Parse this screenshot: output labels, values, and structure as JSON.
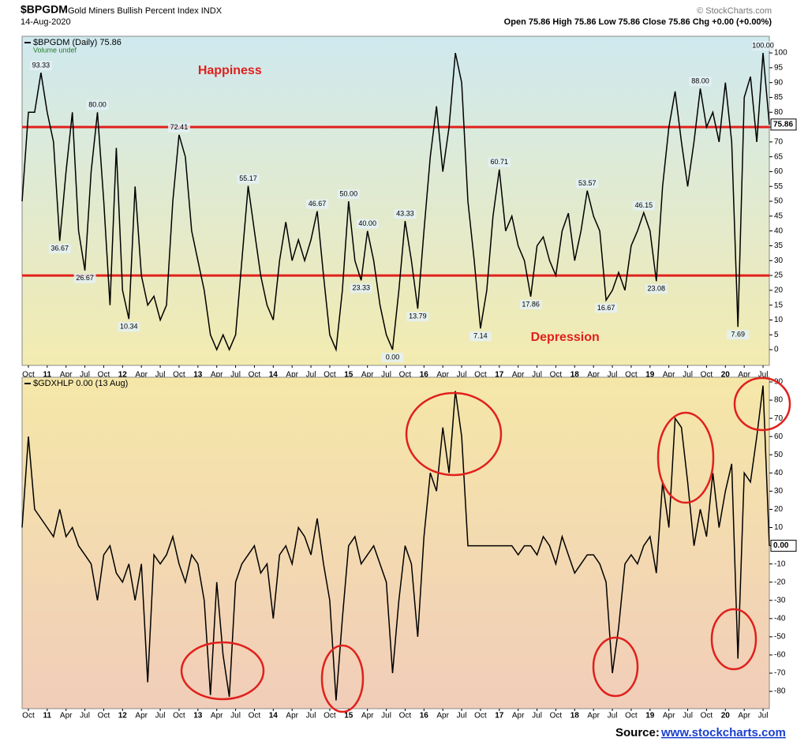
{
  "header": {
    "symbol": "$BPGDM",
    "name": "Gold Miners Bullish Percent Index INDX",
    "date": "14-Aug-2020",
    "credit": "© StockCharts.com",
    "quote": "Open 75.86  High 75.86  Low 75.86  Close 75.86  Chg +0.00 (+0.00%)"
  },
  "chart_data": [
    {
      "type": "line",
      "legend": [
        "$BPGDM (Daily) 75.86",
        "Volume undef"
      ],
      "last_label": "75.86",
      "x": [
        "2010-09",
        "2010-10",
        "2010-11",
        "2010-12",
        "2011-01",
        "2011-02",
        "2011-03",
        "2011-04",
        "2011-05",
        "2011-06",
        "2011-07",
        "2011-08",
        "2011-09",
        "2011-10",
        "2011-11",
        "2011-12",
        "2012-01",
        "2012-02",
        "2012-03",
        "2012-04",
        "2012-05",
        "2012-06",
        "2012-07",
        "2012-08",
        "2012-09",
        "2012-10",
        "2012-11",
        "2012-12",
        "2013-01",
        "2013-02",
        "2013-03",
        "2013-04",
        "2013-05",
        "2013-06",
        "2013-07",
        "2013-08",
        "2013-09",
        "2013-10",
        "2013-11",
        "2013-12",
        "2014-01",
        "2014-02",
        "2014-03",
        "2014-04",
        "2014-05",
        "2014-06",
        "2014-07",
        "2014-08",
        "2014-09",
        "2014-10",
        "2014-11",
        "2014-12",
        "2015-01",
        "2015-02",
        "2015-03",
        "2015-04",
        "2015-05",
        "2015-06",
        "2015-07",
        "2015-08",
        "2015-09",
        "2015-10",
        "2015-11",
        "2015-12",
        "2016-01",
        "2016-02",
        "2016-03",
        "2016-04",
        "2016-05",
        "2016-06",
        "2016-07",
        "2016-08",
        "2016-09",
        "2016-10",
        "2016-11",
        "2016-12",
        "2017-01",
        "2017-02",
        "2017-03",
        "2017-04",
        "2017-05",
        "2017-06",
        "2017-07",
        "2017-08",
        "2017-09",
        "2017-10",
        "2017-11",
        "2017-12",
        "2018-01",
        "2018-02",
        "2018-03",
        "2018-04",
        "2018-05",
        "2018-06",
        "2018-07",
        "2018-08",
        "2018-09",
        "2018-10",
        "2018-11",
        "2018-12",
        "2019-01",
        "2019-02",
        "2019-03",
        "2019-04",
        "2019-05",
        "2019-06",
        "2019-07",
        "2019-08",
        "2019-09",
        "2019-10",
        "2019-11",
        "2019-12",
        "2020-01",
        "2020-02",
        "2020-03",
        "2020-04",
        "2020-05",
        "2020-06",
        "2020-07",
        "2020-08"
      ],
      "series": [
        {
          "name": "$BPGDM",
          "color": "#000000",
          "values": [
            50,
            80,
            80,
            93.33,
            80,
            70,
            36.67,
            60,
            80,
            40,
            26.67,
            60,
            80,
            50,
            15,
            68,
            20,
            10.34,
            55,
            25,
            15,
            18,
            10,
            15,
            50,
            72.41,
            65,
            40,
            30,
            20,
            5,
            0,
            5,
            0,
            5,
            30,
            55.17,
            40,
            25,
            15,
            10,
            30,
            43,
            30,
            37,
            30,
            37,
            46.67,
            25,
            5,
            0,
            20,
            50,
            30,
            23.33,
            40,
            30,
            15,
            5,
            0,
            20,
            43.33,
            30,
            13.79,
            40,
            65,
            82,
            60,
            75,
            100,
            90,
            50,
            30,
            7.14,
            20,
            45,
            60.71,
            40,
            45,
            35,
            30,
            17.86,
            35,
            38,
            30,
            25,
            40,
            46,
            30,
            40,
            53.57,
            45,
            40,
            16.67,
            20,
            26,
            20,
            35,
            40,
            46.15,
            40,
            23.08,
            55,
            75,
            87,
            70,
            55,
            70,
            88,
            75,
            80,
            70,
            90,
            70,
            7.69,
            85,
            92,
            70,
            100,
            75.86
          ],
          "value_labels": [
            null,
            null,
            null,
            "93.33",
            null,
            null,
            "36.67",
            null,
            null,
            null,
            "26.67",
            null,
            "80.00",
            null,
            null,
            null,
            null,
            "10.34",
            null,
            null,
            null,
            null,
            null,
            null,
            null,
            "72.41",
            null,
            null,
            null,
            null,
            null,
            null,
            null,
            null,
            null,
            null,
            "55.17",
            null,
            null,
            null,
            null,
            null,
            null,
            null,
            null,
            null,
            null,
            "46.67",
            null,
            null,
            null,
            null,
            "50.00",
            null,
            "23.33",
            "40.00",
            null,
            null,
            null,
            "0.00",
            null,
            "43.33",
            null,
            "13.79",
            null,
            null,
            null,
            null,
            null,
            null,
            null,
            null,
            null,
            "7.14",
            null,
            null,
            "60.71",
            null,
            null,
            null,
            null,
            "17.86",
            null,
            null,
            null,
            null,
            null,
            null,
            null,
            null,
            "53.57",
            null,
            null,
            "16.67",
            null,
            null,
            null,
            null,
            null,
            "46.15",
            null,
            "23.08",
            null,
            null,
            null,
            null,
            null,
            null,
            "88.00",
            null,
            null,
            null,
            null,
            null,
            "7.69",
            null,
            null,
            null,
            "100.00",
            null
          ]
        }
      ],
      "xlim": [
        "2010-09",
        "2020-08"
      ],
      "ylim": [
        -5.3,
        105.6
      ],
      "yticks": [
        0,
        5,
        10,
        15,
        20,
        25,
        30,
        35,
        40,
        45,
        50,
        55,
        60,
        65,
        70,
        75,
        80,
        85,
        90,
        95,
        100
      ],
      "reference_lines": [
        {
          "value": 75,
          "color": "#e0201c"
        },
        {
          "value": 25,
          "color": "#e0201c"
        }
      ],
      "zones": [
        {
          "text": "Happiness",
          "x": "2013-01",
          "y": 94
        },
        {
          "text": "Depression",
          "x": "2017-06",
          "y": 4
        }
      ],
      "background": [
        "#cfe9ef",
        "#f3ebb0"
      ]
    },
    {
      "type": "line",
      "legend": [
        "$GDXHLP 0.00 (13 Aug)"
      ],
      "last_label": "0.00",
      "x": [
        "2010-09",
        "2010-10",
        "2010-11",
        "2010-12",
        "2011-01",
        "2011-02",
        "2011-03",
        "2011-04",
        "2011-05",
        "2011-06",
        "2011-07",
        "2011-08",
        "2011-09",
        "2011-10",
        "2011-11",
        "2011-12",
        "2012-01",
        "2012-02",
        "2012-03",
        "2012-04",
        "2012-05",
        "2012-06",
        "2012-07",
        "2012-08",
        "2012-09",
        "2012-10",
        "2012-11",
        "2012-12",
        "2013-01",
        "2013-02",
        "2013-03",
        "2013-04",
        "2013-05",
        "2013-06",
        "2013-07",
        "2013-08",
        "2013-09",
        "2013-10",
        "2013-11",
        "2013-12",
        "2014-01",
        "2014-02",
        "2014-03",
        "2014-04",
        "2014-05",
        "2014-06",
        "2014-07",
        "2014-08",
        "2014-09",
        "2014-10",
        "2014-11",
        "2014-12",
        "2015-01",
        "2015-02",
        "2015-03",
        "2015-04",
        "2015-05",
        "2015-06",
        "2015-07",
        "2015-08",
        "2015-09",
        "2015-10",
        "2015-11",
        "2015-12",
        "2016-01",
        "2016-02",
        "2016-03",
        "2016-04",
        "2016-05",
        "2016-06",
        "2016-07",
        "2016-08",
        "2016-09",
        "2016-10",
        "2016-11",
        "2016-12",
        "2017-01",
        "2017-02",
        "2017-03",
        "2017-04",
        "2017-05",
        "2017-06",
        "2017-07",
        "2017-08",
        "2017-09",
        "2017-10",
        "2017-11",
        "2017-12",
        "2018-01",
        "2018-02",
        "2018-03",
        "2018-04",
        "2018-05",
        "2018-06",
        "2018-07",
        "2018-08",
        "2018-09",
        "2018-10",
        "2018-11",
        "2018-12",
        "2019-01",
        "2019-02",
        "2019-03",
        "2019-04",
        "2019-05",
        "2019-06",
        "2019-07",
        "2019-08",
        "2019-09",
        "2019-10",
        "2019-11",
        "2019-12",
        "2020-01",
        "2020-02",
        "2020-03",
        "2020-04",
        "2020-05",
        "2020-06",
        "2020-07",
        "2020-08"
      ],
      "series": [
        {
          "name": "$GDXHLP",
          "color": "#000000",
          "values": [
            10,
            60,
            20,
            15,
            10,
            5,
            20,
            5,
            10,
            0,
            -5,
            -10,
            -30,
            -5,
            0,
            -15,
            -20,
            -10,
            -30,
            -10,
            -75,
            -5,
            -10,
            -5,
            5,
            -10,
            -20,
            -5,
            -10,
            -30,
            -82,
            -20,
            -60,
            -83,
            -20,
            -10,
            -5,
            0,
            -15,
            -10,
            -40,
            -5,
            0,
            -10,
            10,
            5,
            -5,
            15,
            -10,
            -30,
            -85,
            -40,
            0,
            5,
            -10,
            -5,
            0,
            -10,
            -20,
            -70,
            -30,
            0,
            -10,
            -50,
            5,
            40,
            30,
            65,
            40,
            85,
            60,
            0,
            0,
            0,
            0,
            0,
            0,
            0,
            0,
            -5,
            0,
            0,
            -5,
            5,
            0,
            -10,
            5,
            -5,
            -15,
            -10,
            -5,
            -5,
            -10,
            -20,
            -70,
            -45,
            -10,
            -5,
            -10,
            0,
            5,
            -15,
            35,
            10,
            70,
            65,
            35,
            0,
            20,
            5,
            40,
            10,
            30,
            45,
            -62,
            40,
            35,
            60,
            88,
            0
          ]
        }
      ],
      "xlim": [
        "2010-09",
        "2020-08"
      ],
      "ylim": [
        -89.5,
        92.6
      ],
      "yticks": [
        -80,
        -70,
        -60,
        -50,
        -40,
        -30,
        -20,
        -10,
        0,
        10,
        20,
        30,
        40,
        50,
        60,
        70,
        80,
        90
      ],
      "background": [
        "#f5e7a8",
        "#f1cdb9"
      ]
    }
  ],
  "xticks": [
    {
      "value": "2010-10",
      "label": "Oct"
    },
    {
      "value": "2011-01",
      "label": "11"
    },
    {
      "value": "2011-04",
      "label": "Apr"
    },
    {
      "value": "2011-07",
      "label": "Jul"
    },
    {
      "value": "2011-10",
      "label": "Oct"
    },
    {
      "value": "2012-01",
      "label": "12"
    },
    {
      "value": "2012-04",
      "label": "Apr"
    },
    {
      "value": "2012-07",
      "label": "Jul"
    },
    {
      "value": "2012-10",
      "label": "Oct"
    },
    {
      "value": "2013-01",
      "label": "13"
    },
    {
      "value": "2013-04",
      "label": "Apr"
    },
    {
      "value": "2013-07",
      "label": "Jul"
    },
    {
      "value": "2013-10",
      "label": "Oct"
    },
    {
      "value": "2014-01",
      "label": "14"
    },
    {
      "value": "2014-04",
      "label": "Apr"
    },
    {
      "value": "2014-07",
      "label": "Jul"
    },
    {
      "value": "2014-10",
      "label": "Oct"
    },
    {
      "value": "2015-01",
      "label": "15"
    },
    {
      "value": "2015-04",
      "label": "Apr"
    },
    {
      "value": "2015-07",
      "label": "Jul"
    },
    {
      "value": "2015-10",
      "label": "Oct"
    },
    {
      "value": "2016-01",
      "label": "16"
    },
    {
      "value": "2016-04",
      "label": "Apr"
    },
    {
      "value": "2016-07",
      "label": "Jul"
    },
    {
      "value": "2016-10",
      "label": "Oct"
    },
    {
      "value": "2017-01",
      "label": "17"
    },
    {
      "value": "2017-04",
      "label": "Apr"
    },
    {
      "value": "2017-07",
      "label": "Jul"
    },
    {
      "value": "2017-10",
      "label": "Oct"
    },
    {
      "value": "2018-01",
      "label": "18"
    },
    {
      "value": "2018-04",
      "label": "Apr"
    },
    {
      "value": "2018-07",
      "label": "Jul"
    },
    {
      "value": "2018-10",
      "label": "Oct"
    },
    {
      "value": "2019-01",
      "label": "19"
    },
    {
      "value": "2019-04",
      "label": "Apr"
    },
    {
      "value": "2019-07",
      "label": "Jul"
    },
    {
      "value": "2019-10",
      "label": "Oct"
    },
    {
      "value": "2020-01",
      "label": "20"
    },
    {
      "value": "2020-04",
      "label": "Apr"
    },
    {
      "value": "2020-07",
      "label": "Jul"
    }
  ],
  "source": {
    "label": "Source:",
    "link": "www.stockcharts.com"
  }
}
